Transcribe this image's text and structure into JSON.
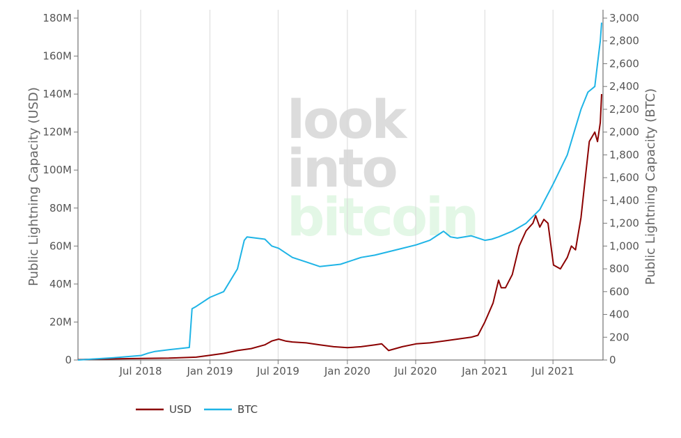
{
  "chart_data": {
    "type": "line",
    "xlabel": "",
    "ylabel": "Public Lightning Capacity (USD)",
    "y2label": "Public Lightning Capacity (BTC)",
    "x_ticks": [
      "Jul 2018",
      "Jan 2019",
      "Jul 2019",
      "Jan 2020",
      "Jul 2020",
      "Jan 2021",
      "Jul 2021"
    ],
    "y_ticks": [
      "0",
      "20M",
      "40M",
      "60M",
      "80M",
      "100M",
      "120M",
      "140M",
      "160M",
      "180M"
    ],
    "y2_ticks": [
      "0",
      "200",
      "400",
      "600",
      "800",
      "1,000",
      "1,200",
      "1,400",
      "1,600",
      "1,800",
      "2,000",
      "2,200",
      "2,400",
      "2,600",
      "2,800",
      "3,000"
    ],
    "ylim": [
      0,
      180
    ],
    "y2lim": [
      0,
      3000
    ],
    "y_unit": "M",
    "xlim": [
      2018.04,
      2021.86
    ],
    "grid": "vertical",
    "legend_position": "bottom-left",
    "watermark": [
      "look",
      "into",
      "bitcoin"
    ],
    "series": [
      {
        "name": "USD",
        "axis": "left",
        "color": "#8B0000",
        "x": [
          2018.04,
          2018.2,
          2018.5,
          2018.7,
          2018.9,
          2019.0,
          2019.1,
          2019.2,
          2019.3,
          2019.4,
          2019.45,
          2019.5,
          2019.55,
          2019.6,
          2019.7,
          2019.8,
          2019.9,
          2020.0,
          2020.1,
          2020.2,
          2020.25,
          2020.3,
          2020.4,
          2020.5,
          2020.6,
          2020.7,
          2020.8,
          2020.9,
          2020.95,
          2021.0,
          2021.03,
          2021.06,
          2021.1,
          2021.12,
          2021.15,
          2021.2,
          2021.25,
          2021.3,
          2021.35,
          2021.37,
          2021.4,
          2021.43,
          2021.46,
          2021.5,
          2021.55,
          2021.6,
          2021.63,
          2021.66,
          2021.7,
          2021.73,
          2021.76,
          2021.8,
          2021.82,
          2021.84,
          2021.85
        ],
        "y": [
          0.2,
          0.5,
          0.8,
          1.0,
          1.5,
          2.5,
          3.5,
          5,
          6,
          8,
          10,
          11,
          10,
          9.5,
          9,
          8,
          7,
          6.5,
          7,
          8,
          8.5,
          5,
          7,
          8.5,
          9,
          10,
          11,
          12,
          13,
          20,
          25,
          30,
          42,
          38,
          38,
          45,
          60,
          68,
          72,
          76,
          70,
          74,
          72,
          50,
          48,
          54,
          60,
          58,
          75,
          95,
          115,
          120,
          115,
          125,
          140
        ]
      },
      {
        "name": "BTC",
        "axis": "right",
        "color": "#1EB4E6",
        "x": [
          2018.04,
          2018.3,
          2018.5,
          2018.55,
          2018.6,
          2018.7,
          2018.85,
          2018.87,
          2018.9,
          2019.0,
          2019.1,
          2019.2,
          2019.25,
          2019.27,
          2019.4,
          2019.45,
          2019.5,
          2019.6,
          2019.7,
          2019.8,
          2019.95,
          2020.1,
          2020.2,
          2020.3,
          2020.4,
          2020.5,
          2020.6,
          2020.7,
          2020.75,
          2020.8,
          2020.9,
          2021.0,
          2021.05,
          2021.1,
          2021.2,
          2021.3,
          2021.4,
          2021.5,
          2021.6,
          2021.65,
          2021.7,
          2021.75,
          2021.8,
          2021.82,
          2021.84,
          2021.85
        ],
        "y": [
          0,
          20,
          40,
          60,
          75,
          90,
          110,
          450,
          470,
          550,
          600,
          800,
          1050,
          1080,
          1060,
          1000,
          980,
          900,
          860,
          820,
          840,
          900,
          920,
          950,
          980,
          1010,
          1050,
          1130,
          1080,
          1070,
          1090,
          1050,
          1060,
          1080,
          1130,
          1200,
          1320,
          1550,
          1800,
          2000,
          2200,
          2350,
          2400,
          2600,
          2800,
          2960
        ]
      }
    ]
  }
}
